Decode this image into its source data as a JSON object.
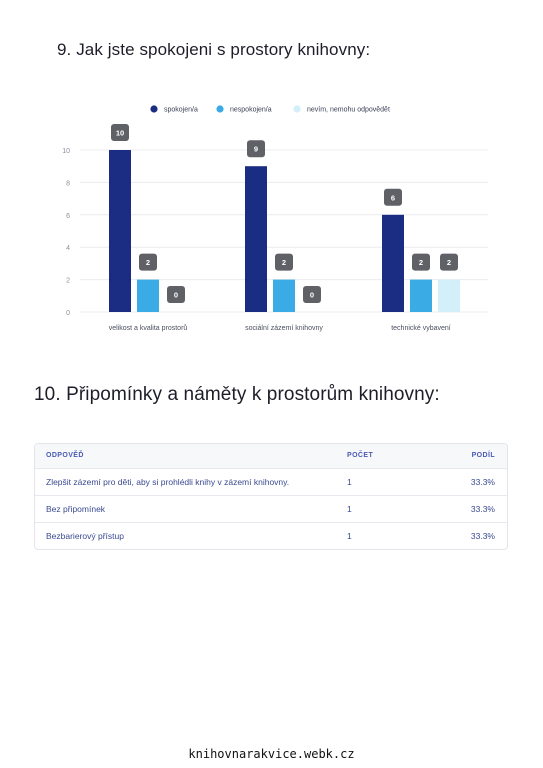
{
  "question9": {
    "title": "9. Jak jste spokojeni s prostory knihovny:"
  },
  "chart_data": {
    "type": "bar",
    "categories": [
      "velikost a kvalita prostorů",
      "sociální zázemí knihovny",
      "technické vybavení"
    ],
    "series": [
      {
        "name": "spokojen/a",
        "values": [
          10,
          9,
          6
        ],
        "color": "#1b2d82"
      },
      {
        "name": "nespokojen/a",
        "values": [
          2,
          2,
          2
        ],
        "color": "#3aabe4"
      },
      {
        "name": "nevím, nemohu odpovědět",
        "values": [
          0,
          0,
          2
        ],
        "color": "#d2effa"
      }
    ],
    "ylim": [
      0,
      10
    ],
    "yticks": [
      0,
      2,
      4,
      6,
      8,
      10
    ],
    "grid": true,
    "legend": "top",
    "data_labels": true
  },
  "question10": {
    "title": "10. Připomínky a náměty k prostorům knihovny:",
    "columns": [
      "ODPOVĚĎ",
      "POČET",
      "PODÍL"
    ],
    "rows": [
      {
        "answer": "Zlepšit zázemí pro děti, aby si prohlédli knihy v zázemí knihovny.",
        "count": "1",
        "share": "33.3%"
      },
      {
        "answer": "Bez připomínek",
        "count": "1",
        "share": "33.3%"
      },
      {
        "answer": "Bezbarierový přístup",
        "count": "1",
        "share": "33.3%"
      }
    ]
  },
  "footer": {
    "site": "knihovnarakvice.webk.cz"
  }
}
